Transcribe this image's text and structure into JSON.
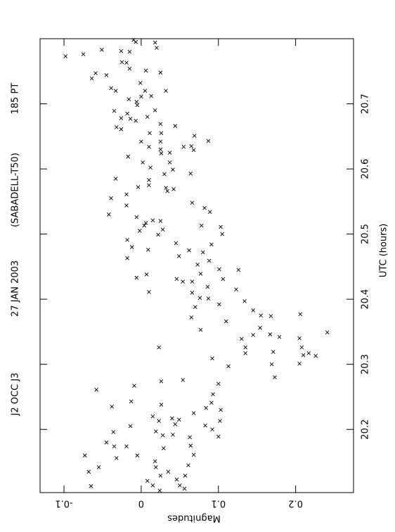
{
  "chart_data": {
    "type": "scatter",
    "annotations": [
      "J2 OCC J3",
      "27 JAN 2003",
      "(SABADELL-T50)",
      "185 PT"
    ],
    "x_label": "UTC (hours)",
    "y_label": "Magnitudes",
    "xlim": [
      20.103,
      20.8
    ],
    "ylim": [
      -0.131,
      0.275
    ],
    "xticks": [
      20.2,
      20.3,
      20.4,
      20.5,
      20.6,
      20.7
    ],
    "yticks": [
      -0.1,
      0,
      0.1,
      0.2
    ],
    "marker": "x",
    "color": "#000000",
    "x": [
      20.773,
      20.776,
      20.783,
      20.781,
      20.78,
      20.798,
      20.795,
      20.794,
      20.786,
      20.763,
      20.764,
      20.754,
      20.751,
      20.739,
      20.747,
      20.744,
      20.72,
      20.724,
      20.732,
      20.748,
      20.72,
      20.711,
      20.712,
      20.72,
      20.703,
      20.698,
      20.685,
      20.707,
      20.689,
      20.69,
      20.678,
      20.677,
      20.674,
      20.68,
      20.669,
      20.655,
      20.664,
      20.661,
      20.666,
      20.655,
      20.642,
      20.642,
      20.634,
      20.63,
      20.625,
      20.624,
      20.61,
      20.619,
      20.634,
      20.629,
      20.651,
      20.643,
      20.635,
      20.61,
      20.602,
      20.599,
      20.592,
      20.583,
      20.575,
      20.571,
      20.566,
      20.572,
      20.585,
      20.561,
      20.555,
      20.544,
      20.569,
      20.593,
      20.548,
      20.54,
      20.534,
      20.53,
      20.526,
      20.521,
      20.517,
      20.52,
      20.507,
      20.513,
      20.505,
      20.499,
      20.513,
      20.511,
      20.5,
      20.484,
      20.491,
      20.48,
      20.476,
      20.486,
      20.475,
      20.466,
      20.472,
      20.459,
      20.453,
      20.439,
      20.463,
      20.433,
      20.438,
      20.411,
      20.431,
      20.427,
      20.446,
      20.445,
      20.431,
      20.427,
      20.41,
      20.419,
      20.401,
      20.402,
      20.415,
      20.397,
      20.392,
      20.388,
      20.366,
      20.372,
      20.353,
      20.383,
      20.375,
      20.374,
      20.356,
      20.346,
      20.342,
      20.345,
      20.339,
      20.326,
      20.317,
      20.297,
      20.309,
      20.319,
      20.3,
      20.28,
      20.34,
      20.326,
      20.317,
      20.314,
      20.313,
      20.349,
      20.301,
      20.326,
      20.377,
      20.276,
      20.27,
      20.254,
      20.241,
      20.233,
      20.23,
      20.213,
      20.2,
      20.206,
      20.274,
      20.238,
      20.267,
      20.243,
      20.235,
      20.261,
      20.196,
      20.22,
      20.217,
      20.208,
      20.215,
      20.213,
      20.197,
      20.205,
      20.191,
      20.174,
      20.174,
      20.18,
      20.16,
      20.151,
      20.171,
      20.192,
      20.188,
      20.175,
      20.161,
      20.145,
      20.16,
      20.156,
      20.142,
      20.135,
      20.135,
      20.123,
      20.114,
      20.109,
      20.142,
      20.129,
      20.121,
      20.114,
      20.106,
      20.113,
      20.129,
      20.225,
      20.189
    ],
    "y": [
      -0.098,
      -0.075,
      -0.051,
      -0.026,
      -0.015,
      -0.01,
      -0.007,
      0.018,
      0.02,
      -0.019,
      -0.025,
      -0.015,
      0.006,
      -0.064,
      -0.059,
      -0.045,
      -0.033,
      -0.039,
      -0.001,
      0.025,
      0.005,
      0.0,
      0.013,
      0.032,
      -0.006,
      -0.005,
      -0.018,
      -0.016,
      -0.035,
      0.018,
      -0.026,
      -0.014,
      -0.007,
      0.008,
      0.025,
      0.011,
      -0.032,
      -0.026,
      0.044,
      0.026,
      0.0,
      0.025,
      0.01,
      0.025,
      0.037,
      0.026,
      0.037,
      -0.017,
      0.055,
      0.068,
      0.069,
      0.087,
      0.065,
      0.002,
      0.012,
      0.041,
      0.03,
      0.01,
      0.01,
      0.032,
      0.034,
      -0.004,
      -0.033,
      -0.019,
      -0.039,
      -0.019,
      0.042,
      0.064,
      0.066,
      0.082,
      0.089,
      -0.042,
      -0.006,
      0.015,
      0.006,
      0.025,
      0.028,
      0.004,
      -0.002,
      0.022,
      0.078,
      0.103,
      0.105,
      0.091,
      -0.018,
      -0.012,
      0.009,
      0.045,
      0.062,
      0.049,
      0.08,
      0.088,
      0.073,
      0.077,
      -0.018,
      -0.006,
      0.007,
      0.01,
      0.046,
      0.066,
      0.101,
      0.126,
      0.106,
      0.054,
      0.066,
      0.086,
      0.087,
      0.076,
      0.123,
      0.134,
      0.101,
      0.07,
      0.11,
      0.065,
      0.077,
      0.145,
      0.155,
      0.168,
      0.154,
      0.167,
      0.179,
      0.145,
      0.13,
      0.135,
      0.135,
      0.113,
      0.092,
      0.171,
      0.169,
      0.173,
      0.205,
      0.208,
      0.217,
      0.21,
      0.226,
      0.241,
      0.205,
      0.023,
      0.206,
      0.054,
      0.1,
      0.093,
      0.091,
      0.084,
      0.103,
      0.102,
      0.092,
      0.083,
      0.026,
      0.026,
      -0.009,
      -0.013,
      -0.038,
      -0.058,
      -0.036,
      0.015,
      0.04,
      0.044,
      0.049,
      0.023,
      0.019,
      -0.014,
      0.028,
      -0.019,
      -0.035,
      -0.045,
      -0.005,
      0.018,
      0.029,
      0.041,
      0.063,
      0.064,
      0.068,
      0.061,
      -0.073,
      -0.032,
      -0.055,
      -0.068,
      0.035,
      0.046,
      0.05,
      0.056,
      0.019,
      0.025,
      0.008,
      0.015,
      0.024,
      -0.065,
      0.057,
      0.068,
      0.1
    ]
  }
}
